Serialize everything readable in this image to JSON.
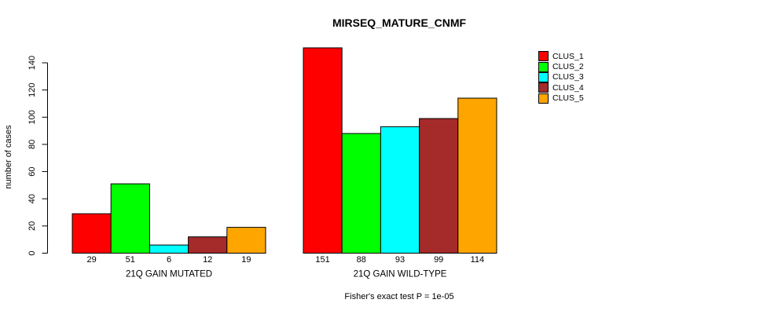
{
  "chart_data": {
    "type": "bar",
    "title": "MIRSEQ_MATURE_CNMF",
    "ylabel": "number of cases",
    "xlabel": "",
    "ylim": [
      0,
      151
    ],
    "yticks": [
      0,
      20,
      40,
      60,
      80,
      100,
      120,
      140
    ],
    "grid": false,
    "legend_position": "right",
    "series": [
      {
        "name": "CLUS_1",
        "color": "#ff0000"
      },
      {
        "name": "CLUS_2",
        "color": "#00ff00"
      },
      {
        "name": "CLUS_3",
        "color": "#00ffff"
      },
      {
        "name": "CLUS_4",
        "color": "#a52a2a"
      },
      {
        "name": "CLUS_5",
        "color": "#ffa500"
      }
    ],
    "groups": [
      {
        "label": "21Q GAIN MUTATED",
        "values": [
          29,
          51,
          6,
          12,
          19
        ]
      },
      {
        "label": "21Q GAIN WILD-TYPE",
        "values": [
          151,
          88,
          93,
          99,
          114
        ]
      }
    ],
    "annotation": "Fisher's exact test P = 1e-05"
  }
}
